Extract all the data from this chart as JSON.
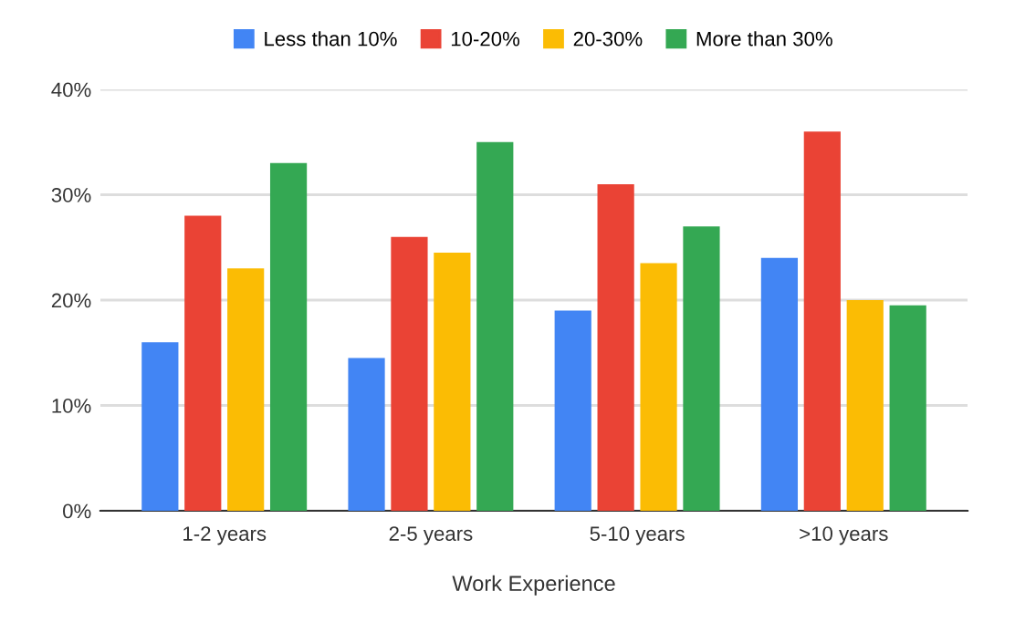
{
  "chart_data": {
    "type": "bar",
    "xlabel": "Work Experience",
    "categories": [
      "1-2 years",
      "2-5 years",
      "5-10 years",
      ">10 years"
    ],
    "series": [
      {
        "name": "Less than 10%",
        "color": "#4285f4",
        "values": [
          16,
          14.5,
          19,
          24
        ]
      },
      {
        "name": "10-20%",
        "color": "#ea4335",
        "values": [
          28,
          26,
          31,
          36
        ]
      },
      {
        "name": "20-30%",
        "color": "#fbbc04",
        "values": [
          23,
          24.5,
          23.5,
          20
        ]
      },
      {
        "name": "More than 30%",
        "color": "#34a853",
        "values": [
          33,
          35,
          27,
          19.5
        ]
      }
    ],
    "ylim": [
      0,
      40
    ],
    "yticks": [
      {
        "value": 0,
        "label": "0%"
      },
      {
        "value": 10,
        "label": "10%"
      },
      {
        "value": 20,
        "label": "20%"
      },
      {
        "value": 30,
        "label": "30%"
      },
      {
        "value": 40,
        "label": "40%"
      }
    ],
    "grid": "y",
    "legend": "top"
  }
}
